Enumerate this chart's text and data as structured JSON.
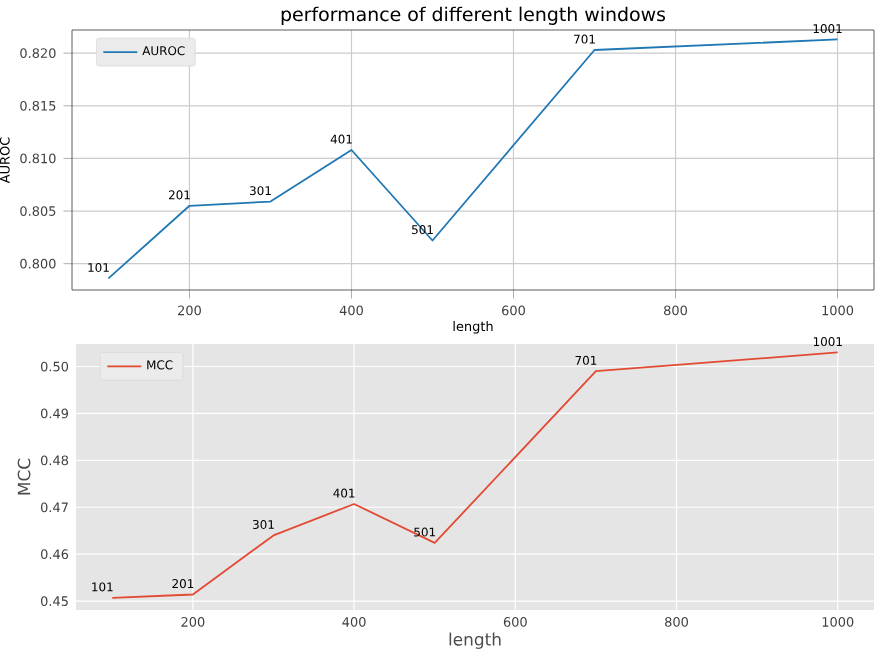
{
  "chart_data": [
    {
      "type": "line",
      "title": "performance of different length windows",
      "xlabel": "length",
      "ylabel": "AUROC",
      "x": [
        100,
        200,
        300,
        400,
        500,
        700,
        1000
      ],
      "series": [
        {
          "name": "AUROC",
          "color": "#1f77b4",
          "values": [
            0.7986,
            0.8055,
            0.8059,
            0.8108,
            0.8022,
            0.8203,
            0.8213
          ]
        }
      ],
      "xlim": [
        55,
        1045
      ],
      "ylim": [
        0.7975,
        0.8222
      ],
      "xticks": [
        200,
        400,
        600,
        800,
        1000
      ],
      "yticks": [
        {
          "value": 0.8,
          "label": "0.800"
        },
        {
          "value": 0.805,
          "label": "0.805"
        },
        {
          "value": 0.81,
          "label": "0.810"
        },
        {
          "value": 0.815,
          "label": "0.815"
        },
        {
          "value": 0.82,
          "label": "0.820"
        }
      ],
      "grid": true,
      "legend": "top left",
      "annotations": [
        {
          "text": "101",
          "x": 100,
          "y": 0.7986
        },
        {
          "text": "201",
          "x": 200,
          "y": 0.8055
        },
        {
          "text": "301",
          "x": 300,
          "y": 0.8059
        },
        {
          "text": "401",
          "x": 400,
          "y": 0.8108
        },
        {
          "text": "501",
          "x": 500,
          "y": 0.8022
        },
        {
          "text": "701",
          "x": 700,
          "y": 0.8203
        },
        {
          "text": "1001",
          "x": 1000,
          "y": 0.8213
        }
      ]
    },
    {
      "type": "line",
      "xlabel": "length",
      "ylabel": "MCC",
      "x": [
        100,
        200,
        300,
        400,
        500,
        700,
        1000
      ],
      "series": [
        {
          "name": "MCC",
          "color": "#e24a33",
          "values": [
            0.4507,
            0.4514,
            0.464,
            0.4707,
            0.4624,
            0.499,
            0.503
          ]
        }
      ],
      "xlim": [
        55,
        1045
      ],
      "ylim": [
        0.4481,
        0.5048
      ],
      "xticks": [
        200,
        400,
        600,
        800,
        1000
      ],
      "yticks": [
        {
          "value": 0.45,
          "label": "0.45"
        },
        {
          "value": 0.46,
          "label": "0.46"
        },
        {
          "value": 0.47,
          "label": "0.47"
        },
        {
          "value": 0.48,
          "label": "0.48"
        },
        {
          "value": 0.49,
          "label": "0.49"
        },
        {
          "value": 0.5,
          "label": "0.50"
        }
      ],
      "grid": true,
      "legend": "top left",
      "annotations": [
        {
          "text": "101",
          "x": 100,
          "y": 0.4507
        },
        {
          "text": "201",
          "x": 200,
          "y": 0.4514
        },
        {
          "text": "301",
          "x": 300,
          "y": 0.464
        },
        {
          "text": "401",
          "x": 400,
          "y": 0.4707
        },
        {
          "text": "501",
          "x": 500,
          "y": 0.4624
        },
        {
          "text": "701",
          "x": 700,
          "y": 0.499
        },
        {
          "text": "1001",
          "x": 1000,
          "y": 0.503
        }
      ]
    }
  ]
}
